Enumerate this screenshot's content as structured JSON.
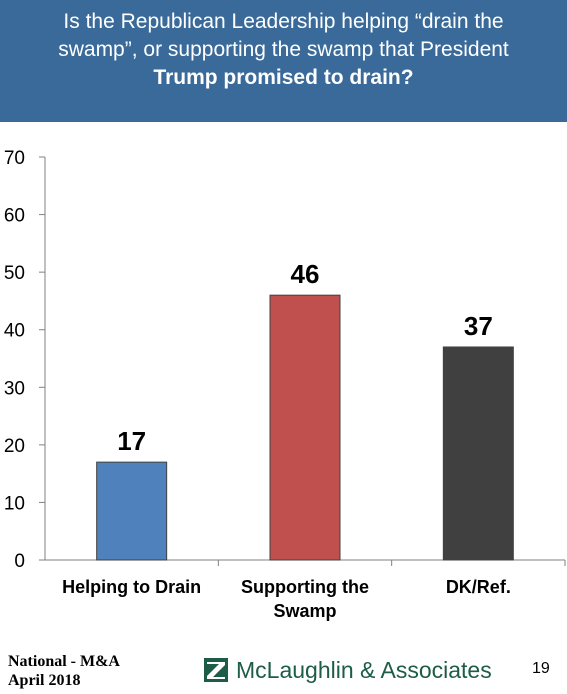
{
  "header": {
    "line1": "Is the Republican Leadership helping “drain the",
    "line2": "swamp”, or supporting the swamp that President",
    "line3": "Trump promised to drain?"
  },
  "chart_data": {
    "type": "bar",
    "categories": [
      [
        "Helping to Drain"
      ],
      [
        "Supporting the",
        "Swamp"
      ],
      [
        "DK/Ref."
      ]
    ],
    "values": [
      17,
      46,
      37
    ],
    "colors": [
      "#4f81bd",
      "#c0504d",
      "#404040"
    ],
    "ylim": [
      0,
      70
    ],
    "yticks": [
      0,
      10,
      20,
      30,
      40,
      50,
      60,
      70
    ],
    "grid": false,
    "legend": "none"
  },
  "footer": {
    "source_line1": "National - M&A",
    "source_line2": "April 2018",
    "logo_text": "McLaughlin & Associates",
    "logo_icon": "mclaughlin-logo-icon",
    "page_number": "19"
  }
}
